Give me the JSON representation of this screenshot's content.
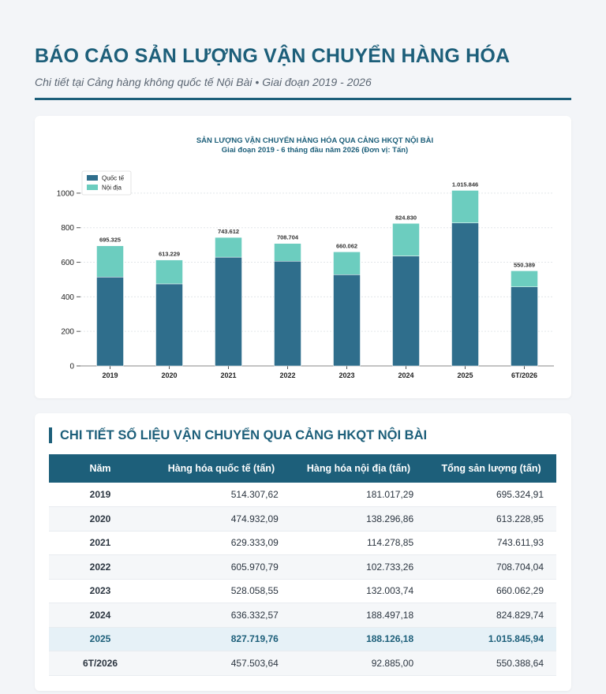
{
  "header": {
    "title": "BÁO CÁO SẢN LƯỢNG VẬN CHUYỂN HÀNG HÓA",
    "subtitle": "Chi tiết tại Cảng hàng không quốc tế Nội Bài • Giai đoạn 2019 - 2026"
  },
  "chart_data": {
    "type": "bar",
    "stacked": true,
    "title": "SẢN LƯỢNG VẬN CHUYỂN HÀNG HÓA QUA CẢNG HKQT NỘI BÀI",
    "subtitle": "Giai đoạn 2019 - 6 tháng đầu năm 2026 (Đơn vị: Tấn)",
    "xlabel": "",
    "ylabel": "",
    "ylim": [
      0,
      1100
    ],
    "yticks": [
      0,
      200,
      400,
      600,
      800,
      1000
    ],
    "categories": [
      "2019",
      "2020",
      "2021",
      "2022",
      "2023",
      "2024",
      "2025",
      "6T/2026"
    ],
    "series": [
      {
        "name": "Quốc tế",
        "color": "#2f6e8c",
        "values": [
          514.3,
          474.9,
          629.3,
          606.0,
          528.1,
          636.3,
          827.7,
          457.5
        ]
      },
      {
        "name": "Nội địa",
        "color": "#6ccdbf",
        "values": [
          181.0,
          138.3,
          114.3,
          102.7,
          132.0,
          188.5,
          188.1,
          92.9
        ]
      }
    ],
    "totals_labels": [
      "695.325",
      "613.229",
      "743.612",
      "708.704",
      "660.062",
      "824.830",
      "1.015.846",
      "550.389"
    ],
    "grid": true,
    "legend": "top-left"
  },
  "table": {
    "title": "CHI TIẾT SỐ LIỆU VẬN CHUYỂN QUA CẢNG HKQT NỘI BÀI",
    "headers": [
      "Năm",
      "Hàng hóa quốc tế (tấn)",
      "Hàng hóa nội địa (tấn)",
      "Tổng sản lượng (tấn)"
    ],
    "rows": [
      {
        "year": "2019",
        "intl": "514.307,62",
        "dom": "181.017,29",
        "total": "695.324,91"
      },
      {
        "year": "2020",
        "intl": "474.932,09",
        "dom": "138.296,86",
        "total": "613.228,95"
      },
      {
        "year": "2021",
        "intl": "629.333,09",
        "dom": "114.278,85",
        "total": "743.611,93"
      },
      {
        "year": "2022",
        "intl": "605.970,79",
        "dom": "102.733,26",
        "total": "708.704,04"
      },
      {
        "year": "2023",
        "intl": "528.058,55",
        "dom": "132.003,74",
        "total": "660.062,29"
      },
      {
        "year": "2024",
        "intl": "636.332,57",
        "dom": "188.497,18",
        "total": "824.829,74"
      },
      {
        "year": "2025",
        "intl": "827.719,76",
        "dom": "188.126,18",
        "total": "1.015.845,94"
      },
      {
        "year": "6T/2026",
        "intl": "457.503,64",
        "dom": "92.885,00",
        "total": "550.388,64"
      }
    ],
    "highlight_row": 6
  }
}
